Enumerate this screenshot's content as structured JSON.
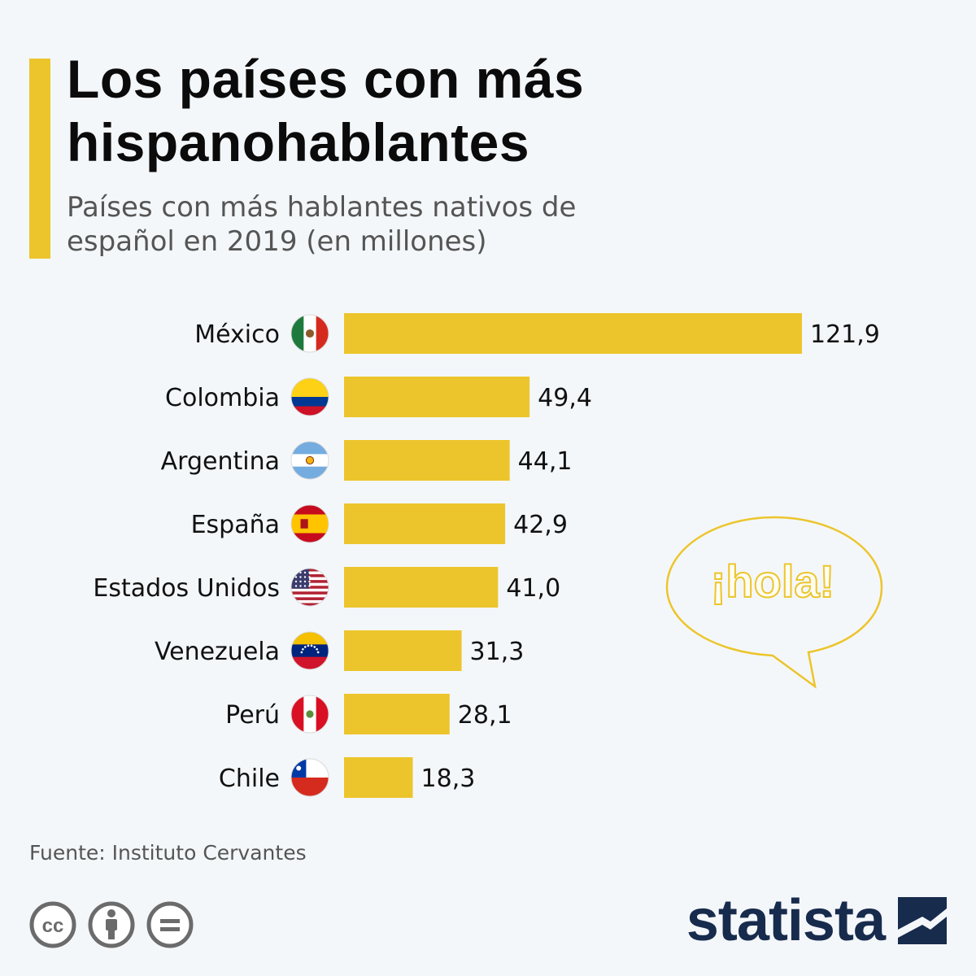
{
  "title": "Los países con más hispanohablantes",
  "subtitle": "Países con más hablantes nativos de español en 2019 (en millones)",
  "source": "Fuente: Instituto Cervantes",
  "bubble_text": "¡hola!",
  "brand": "statista",
  "license_icons": [
    "cc-icon",
    "attribution-icon",
    "no-derivatives-icon"
  ],
  "colors": {
    "bar": "#ecc52c",
    "accent": "#ecc52c",
    "brand": "#172b4d",
    "background": "#f4f7fa"
  },
  "chart_data": {
    "type": "bar",
    "orientation": "horizontal",
    "categories": [
      "México",
      "Colombia",
      "Argentina",
      "España",
      "Estados Unidos",
      "Venezuela",
      "Perú",
      "Chile"
    ],
    "values": [
      121.9,
      49.4,
      44.1,
      42.9,
      41.0,
      31.3,
      28.1,
      18.3
    ],
    "value_labels": [
      "121,9",
      "49,4",
      "44,1",
      "42,9",
      "41,0",
      "31,3",
      "28,1",
      "18,3"
    ],
    "flags": [
      "mexico-flag-icon",
      "colombia-flag-icon",
      "argentina-flag-icon",
      "spain-flag-icon",
      "usa-flag-icon",
      "venezuela-flag-icon",
      "peru-flag-icon",
      "chile-flag-icon"
    ],
    "title": "Los países con más hispanohablantes",
    "subtitle": "Países con más hablantes nativos de español en 2019 (en millones)",
    "xlabel": "",
    "ylabel": "",
    "xlim": [
      0,
      121.9
    ],
    "grid": false,
    "legend": "none"
  }
}
